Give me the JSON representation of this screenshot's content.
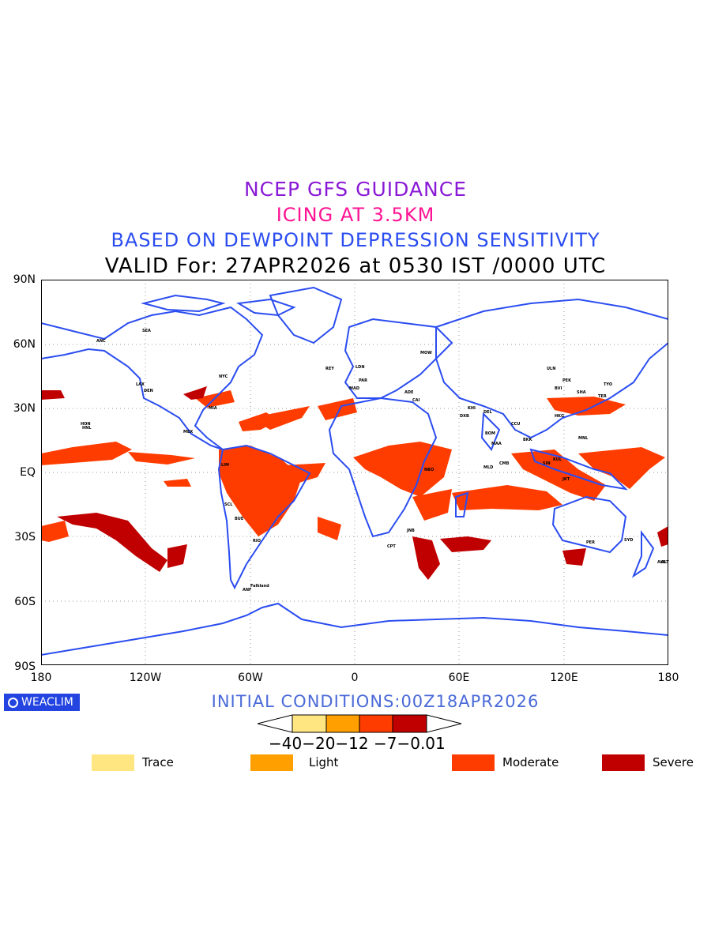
{
  "titles": {
    "line1": "NCEP GFS GUIDANCE",
    "line2": "ICING AT 3.5KM",
    "line3": "BASED ON DEWPOINT DEPRESSION SENSITIVITY",
    "line4": "VALID For: 27APR2026 at 0530 IST /0000 UTC"
  },
  "map": {
    "lat_labels": [
      "90N",
      "60N",
      "30N",
      "EQ",
      "30S",
      "60S",
      "90S"
    ],
    "lon_labels": [
      "180",
      "120W",
      "60W",
      "0",
      "60E",
      "120E",
      "180"
    ],
    "coastline_color": "#2b4df0",
    "grid": true
  },
  "stations": [
    "ANC",
    "SEA",
    "DEN",
    "LAX",
    "MIA",
    "NYC",
    "MEX",
    "LIM",
    "SCL",
    "BUE",
    "RIO",
    "LDN",
    "PAR",
    "MAD",
    "CAI",
    "NBO",
    "JNB",
    "CPT",
    "DXB",
    "KHI",
    "DEL",
    "BOM",
    "MAA",
    "CCU",
    "BKK",
    "SIN",
    "HKG",
    "PEK",
    "SHA",
    "TYO",
    "SYD",
    "PER",
    "AKL",
    "HNL",
    "ANF",
    "JKT",
    "KUL",
    "MNL",
    "CMB",
    "MLD",
    "Falkland",
    "HON",
    "REY",
    "MOW",
    "ULN",
    "BVI",
    "ALT",
    "ADE",
    "TER"
  ],
  "footer": {
    "logo_text": "WEACLIM",
    "initial_conditions": "INITIAL CONDITIONS:00Z18APR2026"
  },
  "colorbar": {
    "ticks_text": "−40−20−12 −7−0.01",
    "colors": [
      "#ffe680",
      "#ffa000",
      "#ff3c00",
      "#c00000"
    ]
  },
  "legend": [
    {
      "label": "Trace",
      "color": "#ffe680"
    },
    {
      "label": "Light",
      "color": "#ffa000"
    },
    {
      "label": "Moderate",
      "color": "#ff3c00"
    },
    {
      "label": "Severe",
      "color": "#c00000"
    }
  ]
}
